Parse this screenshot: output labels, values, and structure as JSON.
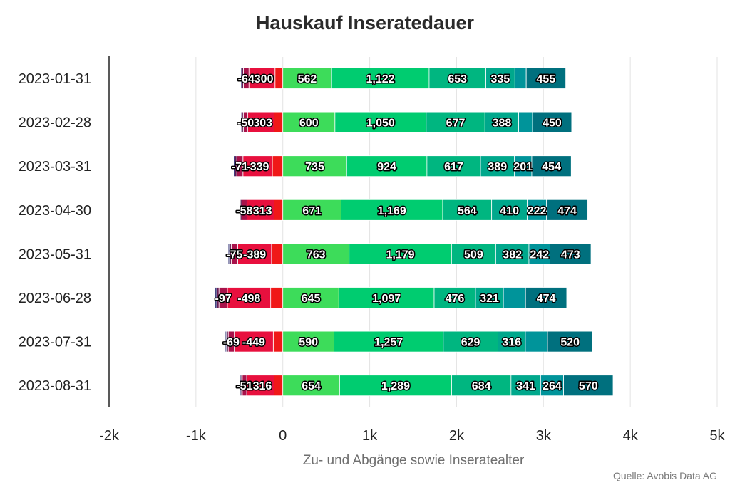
{
  "chart_data": {
    "type": "bar",
    "orientation": "horizontal",
    "stacked": true,
    "title": "Hauskauf Inseratedauer",
    "xlabel": "Zu- und Abgänge sowie Inseratealter",
    "source": "Quelle: Avobis Data AG",
    "xlim": [
      -2000,
      5000
    ],
    "xticks": [
      {
        "value": -2000,
        "label": "-2k"
      },
      {
        "value": -1000,
        "label": "-1k"
      },
      {
        "value": 0,
        "label": "0"
      },
      {
        "value": 1000,
        "label": "1k"
      },
      {
        "value": 2000,
        "label": "2k"
      },
      {
        "value": 3000,
        "label": "3k"
      },
      {
        "value": 4000,
        "label": "4k"
      },
      {
        "value": 5000,
        "label": "5k"
      }
    ],
    "grid": true,
    "legend": "none",
    "categories": [
      "2023-01-31",
      "2023-02-28",
      "2023-03-31",
      "2023-04-30",
      "2023-05-31",
      "2023-06-28",
      "2023-07-31",
      "2023-08-31"
    ],
    "negative_series": [
      {
        "color": "#f01818",
        "values": [
          -90,
          -100,
          -120,
          -100,
          -130,
          -140,
          -110,
          -100
        ],
        "labeled": false
      },
      {
        "color": "#e8103e",
        "values": [
          -300,
          -303,
          -339,
          -313,
          -389,
          -498,
          -449,
          -316
        ],
        "labeled": true
      },
      {
        "color": "#a8124a",
        "values": [
          -64,
          -50,
          -71,
          -58,
          -75,
          -97,
          -69,
          -51
        ],
        "labeled": true
      },
      {
        "color": "#6a1a52",
        "values": [
          -18,
          -15,
          -22,
          -18,
          -20,
          -25,
          -20,
          -15
        ],
        "labeled": false
      },
      {
        "color": "#3a3a7a",
        "values": [
          -12,
          -12,
          -15,
          -12,
          -15,
          -20,
          -14,
          -12
        ],
        "labeled": false
      }
    ],
    "positive_series": [
      {
        "color": "#3ddc5a",
        "values": [
          562,
          600,
          735,
          671,
          763,
          645,
          590,
          654
        ],
        "labeled": true
      },
      {
        "color": "#00cc70",
        "values": [
          1122,
          1050,
          924,
          1169,
          1179,
          1097,
          1257,
          1289
        ],
        "labeled": true
      },
      {
        "color": "#00b680",
        "values": [
          653,
          677,
          617,
          564,
          509,
          476,
          629,
          684
        ],
        "labeled": true
      },
      {
        "color": "#00a88c",
        "values": [
          335,
          388,
          389,
          410,
          382,
          321,
          316,
          341
        ],
        "labeled": true
      },
      {
        "color": "#00949a",
        "values": [
          130,
          160,
          201,
          222,
          242,
          255,
          255,
          264
        ],
        "labeled": [
          false,
          false,
          true,
          true,
          true,
          false,
          false,
          true
        ]
      },
      {
        "color": "#00707e",
        "values": [
          455,
          450,
          454,
          474,
          473,
          474,
          520,
          570
        ],
        "labeled": true
      }
    ]
  }
}
